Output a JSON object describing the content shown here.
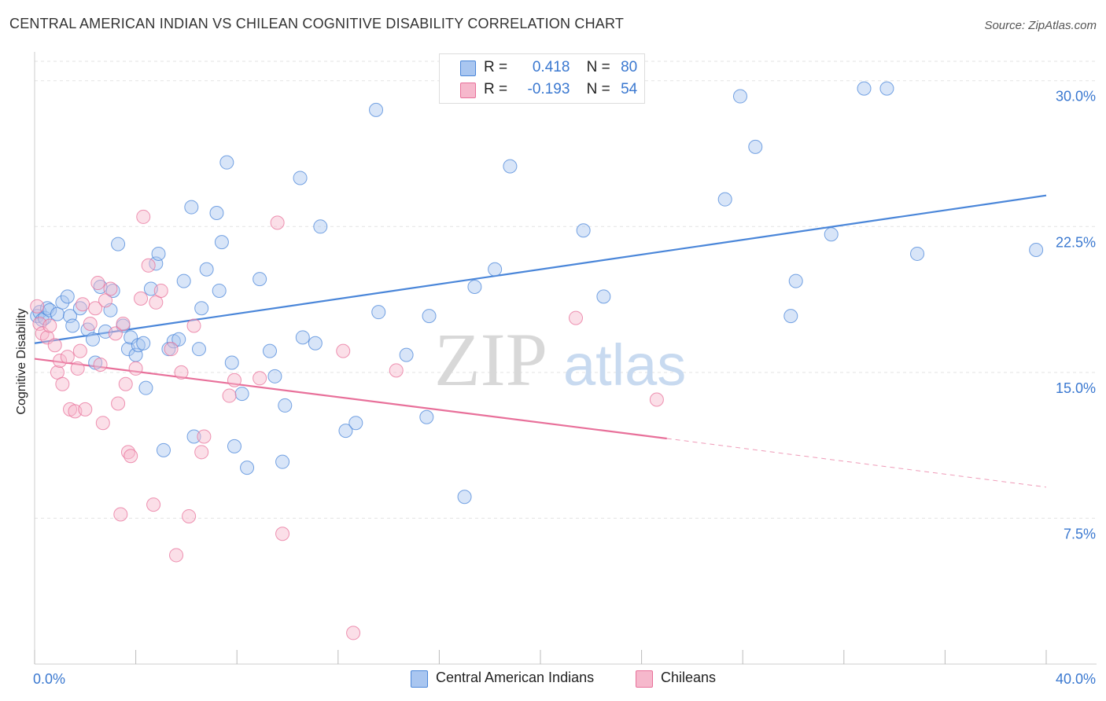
{
  "title": "CENTRAL AMERICAN INDIAN VS CHILEAN COGNITIVE DISABILITY CORRELATION CHART",
  "source": "Source: ZipAtlas.com",
  "watermark": {
    "zip": "ZIP",
    "atlas": "atlas"
  },
  "colors": {
    "blue": "#4a86d9",
    "blue_fill": "#a9c6f0",
    "pink": "#e8709a",
    "pink_fill": "#f6b8cc",
    "axis_label": "#3a78d0",
    "grid": "#e3e3e3"
  },
  "legend": {
    "rows": [
      {
        "r_label": "R =",
        "r_value": "0.418",
        "n_label": "N =",
        "n_value": "80"
      },
      {
        "r_label": "R =",
        "r_value": "-0.193",
        "n_label": "N =",
        "n_value": "54"
      }
    ]
  },
  "bottom_legend": [
    "Central American Indians",
    "Chileans"
  ],
  "chart_data": {
    "type": "scatter",
    "title": "CENTRAL AMERICAN INDIAN VS CHILEAN COGNITIVE DISABILITY CORRELATION CHART",
    "xlabel": "",
    "ylabel": "Cognitive Disability",
    "xlim": [
      0,
      40
    ],
    "ylim": [
      0,
      31
    ],
    "x_tick_labels": [
      "0.0%",
      "40.0%"
    ],
    "y_ticks": [
      7.5,
      15.0,
      22.5,
      30.0
    ],
    "y_tick_labels": [
      "7.5%",
      "15.0%",
      "22.5%",
      "30.0%"
    ],
    "grid": true,
    "legend_position": "top-center",
    "series": [
      {
        "name": "Central American Indians",
        "color": "#4a86d9",
        "trend": {
          "x": [
            0,
            40
          ],
          "y": [
            16.5,
            24.1
          ]
        },
        "points": [
          [
            0.1,
            17.9
          ],
          [
            0.2,
            18.1
          ],
          [
            0.3,
            17.7
          ],
          [
            0.4,
            17.8
          ],
          [
            0.5,
            18.3
          ],
          [
            0.6,
            18.2
          ],
          [
            0.9,
            18.0
          ],
          [
            1.1,
            18.6
          ],
          [
            1.3,
            18.9
          ],
          [
            1.4,
            17.9
          ],
          [
            1.5,
            17.4
          ],
          [
            1.8,
            18.3
          ],
          [
            2.1,
            17.2
          ],
          [
            2.3,
            16.7
          ],
          [
            2.4,
            15.5
          ],
          [
            2.6,
            19.4
          ],
          [
            2.8,
            17.1
          ],
          [
            3.0,
            18.2
          ],
          [
            3.1,
            19.2
          ],
          [
            3.3,
            21.6
          ],
          [
            3.5,
            17.4
          ],
          [
            3.7,
            16.2
          ],
          [
            3.8,
            16.8
          ],
          [
            4.0,
            15.9
          ],
          [
            4.1,
            16.4
          ],
          [
            4.3,
            16.5
          ],
          [
            4.4,
            14.2
          ],
          [
            4.6,
            19.3
          ],
          [
            4.8,
            20.6
          ],
          [
            4.9,
            21.1
          ],
          [
            5.1,
            11.0
          ],
          [
            5.3,
            16.2
          ],
          [
            5.5,
            16.6
          ],
          [
            5.7,
            16.7
          ],
          [
            5.9,
            19.7
          ],
          [
            6.2,
            23.5
          ],
          [
            6.3,
            11.7
          ],
          [
            6.5,
            16.2
          ],
          [
            6.6,
            18.3
          ],
          [
            6.8,
            20.3
          ],
          [
            7.2,
            23.2
          ],
          [
            7.4,
            21.7
          ],
          [
            7.6,
            25.8
          ],
          [
            7.8,
            15.5
          ],
          [
            7.9,
            11.2
          ],
          [
            8.2,
            13.9
          ],
          [
            8.4,
            10.1
          ],
          [
            8.9,
            19.8
          ],
          [
            9.3,
            16.1
          ],
          [
            9.5,
            14.8
          ],
          [
            9.8,
            10.4
          ],
          [
            9.9,
            13.3
          ],
          [
            10.5,
            25.0
          ],
          [
            10.6,
            16.8
          ],
          [
            11.1,
            16.5
          ],
          [
            11.3,
            22.5
          ],
          [
            12.3,
            12.0
          ],
          [
            12.7,
            12.4
          ],
          [
            13.5,
            28.5
          ],
          [
            13.6,
            18.1
          ],
          [
            14.7,
            15.9
          ],
          [
            15.5,
            12.7
          ],
          [
            15.6,
            17.9
          ],
          [
            17.0,
            8.6
          ],
          [
            17.4,
            19.4
          ],
          [
            18.2,
            20.3
          ],
          [
            18.8,
            25.6
          ],
          [
            21.7,
            22.3
          ],
          [
            22.5,
            18.9
          ],
          [
            27.3,
            23.9
          ],
          [
            27.9,
            29.2
          ],
          [
            28.5,
            26.6
          ],
          [
            29.9,
            17.9
          ],
          [
            30.1,
            19.7
          ],
          [
            31.5,
            22.1
          ],
          [
            32.8,
            29.6
          ],
          [
            33.7,
            29.6
          ],
          [
            34.9,
            21.1
          ],
          [
            39.6,
            21.3
          ],
          [
            7.3,
            19.2
          ]
        ]
      },
      {
        "name": "Chileans",
        "color": "#e8709a",
        "trend": {
          "x": [
            0,
            25
          ],
          "y": [
            15.7,
            11.6
          ],
          "dashed_to": {
            "x": 40,
            "y": 9.1
          }
        },
        "points": [
          [
            0.1,
            18.4
          ],
          [
            0.2,
            17.5
          ],
          [
            0.3,
            17.0
          ],
          [
            0.5,
            16.8
          ],
          [
            0.6,
            17.4
          ],
          [
            0.8,
            16.4
          ],
          [
            0.9,
            15.0
          ],
          [
            1.0,
            15.6
          ],
          [
            1.1,
            14.4
          ],
          [
            1.3,
            15.8
          ],
          [
            1.4,
            13.1
          ],
          [
            1.6,
            13.0
          ],
          [
            1.7,
            15.2
          ],
          [
            1.8,
            16.1
          ],
          [
            1.9,
            18.5
          ],
          [
            2.0,
            13.1
          ],
          [
            2.2,
            17.5
          ],
          [
            2.4,
            18.3
          ],
          [
            2.5,
            19.6
          ],
          [
            2.6,
            15.4
          ],
          [
            2.7,
            12.4
          ],
          [
            2.8,
            18.7
          ],
          [
            3.0,
            19.3
          ],
          [
            3.2,
            17.0
          ],
          [
            3.3,
            13.4
          ],
          [
            3.4,
            7.7
          ],
          [
            3.5,
            17.5
          ],
          [
            3.6,
            14.4
          ],
          [
            3.7,
            10.9
          ],
          [
            3.8,
            10.7
          ],
          [
            4.0,
            15.2
          ],
          [
            4.2,
            18.8
          ],
          [
            4.3,
            23.0
          ],
          [
            4.5,
            20.5
          ],
          [
            4.7,
            8.2
          ],
          [
            4.8,
            18.6
          ],
          [
            5.0,
            19.2
          ],
          [
            5.4,
            16.2
          ],
          [
            5.6,
            5.6
          ],
          [
            5.8,
            15.0
          ],
          [
            6.1,
            7.6
          ],
          [
            6.6,
            10.9
          ],
          [
            6.7,
            11.7
          ],
          [
            7.7,
            13.8
          ],
          [
            7.9,
            14.6
          ],
          [
            8.9,
            14.7
          ],
          [
            9.6,
            22.7
          ],
          [
            9.8,
            6.7
          ],
          [
            12.2,
            16.1
          ],
          [
            12.6,
            1.6
          ],
          [
            14.3,
            15.1
          ],
          [
            21.4,
            17.8
          ],
          [
            24.6,
            13.6
          ],
          [
            6.3,
            17.4
          ]
        ]
      }
    ]
  }
}
